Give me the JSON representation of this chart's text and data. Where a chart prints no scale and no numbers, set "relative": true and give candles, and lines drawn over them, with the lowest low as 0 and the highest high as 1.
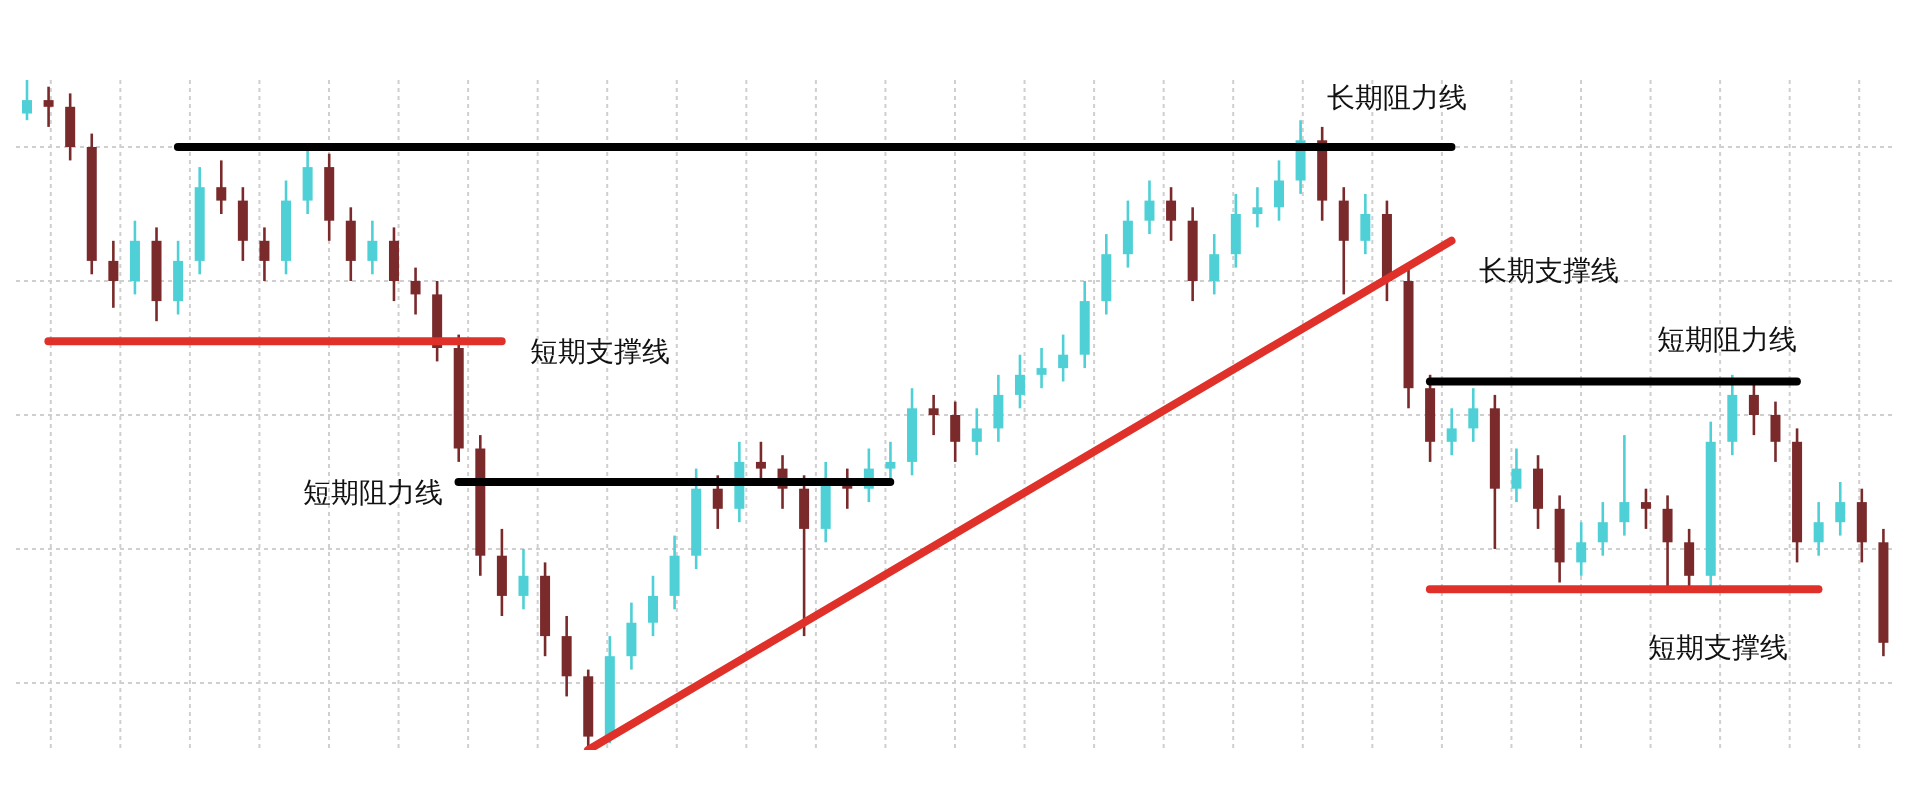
{
  "chart_data": {
    "type": "candlestick",
    "relative": true,
    "grid": true,
    "categories": [
      null,
      null,
      null,
      null,
      null,
      null,
      null,
      null,
      null,
      null,
      null,
      null,
      null,
      null,
      null,
      null,
      null,
      null,
      null,
      null,
      null,
      null,
      null,
      null,
      null,
      null,
      null,
      null,
      null,
      null,
      null,
      null,
      null,
      null,
      null,
      null,
      null,
      null,
      null,
      null,
      null,
      null,
      null,
      null,
      null,
      null,
      null,
      null,
      null,
      null,
      null,
      null,
      null,
      null,
      null,
      null,
      null,
      null,
      null,
      null,
      null,
      null,
      null,
      null,
      null,
      null,
      null,
      null,
      null,
      null,
      null,
      null,
      null,
      null,
      null,
      null,
      null,
      null,
      null,
      null,
      null,
      null,
      null,
      null,
      null,
      null,
      null
    ],
    "ohlc": [
      [
        0.95,
        1.0,
        0.94,
        0.97
      ],
      [
        0.97,
        0.99,
        0.93,
        0.96
      ],
      [
        0.96,
        0.98,
        0.88,
        0.9
      ],
      [
        0.9,
        0.92,
        0.71,
        0.73
      ],
      [
        0.73,
        0.76,
        0.66,
        0.7
      ],
      [
        0.7,
        0.79,
        0.68,
        0.76
      ],
      [
        0.76,
        0.78,
        0.64,
        0.67
      ],
      [
        0.67,
        0.76,
        0.65,
        0.73
      ],
      [
        0.73,
        0.87,
        0.71,
        0.84
      ],
      [
        0.84,
        0.88,
        0.8,
        0.82
      ],
      [
        0.82,
        0.84,
        0.73,
        0.76
      ],
      [
        0.76,
        0.78,
        0.7,
        0.73
      ],
      [
        0.73,
        0.85,
        0.71,
        0.82
      ],
      [
        0.82,
        0.9,
        0.8,
        0.87
      ],
      [
        0.87,
        0.89,
        0.76,
        0.79
      ],
      [
        0.79,
        0.81,
        0.7,
        0.73
      ],
      [
        0.73,
        0.79,
        0.71,
        0.76
      ],
      [
        0.76,
        0.78,
        0.67,
        0.7
      ],
      [
        0.7,
        0.72,
        0.65,
        0.68
      ],
      [
        0.68,
        0.7,
        0.58,
        0.6
      ],
      [
        0.6,
        0.62,
        0.43,
        0.45
      ],
      [
        0.45,
        0.47,
        0.26,
        0.29
      ],
      [
        0.29,
        0.33,
        0.2,
        0.23
      ],
      [
        0.23,
        0.3,
        0.21,
        0.26
      ],
      [
        0.26,
        0.28,
        0.14,
        0.17
      ],
      [
        0.17,
        0.2,
        0.08,
        0.11
      ],
      [
        0.11,
        0.12,
        0.0,
        0.02
      ],
      [
        0.02,
        0.17,
        0.01,
        0.14
      ],
      [
        0.14,
        0.22,
        0.12,
        0.19
      ],
      [
        0.19,
        0.26,
        0.17,
        0.23
      ],
      [
        0.23,
        0.32,
        0.21,
        0.29
      ],
      [
        0.29,
        0.42,
        0.27,
        0.39
      ],
      [
        0.39,
        0.41,
        0.33,
        0.36
      ],
      [
        0.36,
        0.46,
        0.34,
        0.43
      ],
      [
        0.43,
        0.46,
        0.4,
        0.42
      ],
      [
        0.42,
        0.44,
        0.36,
        0.39
      ],
      [
        0.39,
        0.41,
        0.17,
        0.33
      ],
      [
        0.33,
        0.43,
        0.31,
        0.4
      ],
      [
        0.4,
        0.42,
        0.36,
        0.39
      ],
      [
        0.39,
        0.45,
        0.37,
        0.42
      ],
      [
        0.42,
        0.46,
        0.4,
        0.43
      ],
      [
        0.43,
        0.54,
        0.41,
        0.51
      ],
      [
        0.51,
        0.53,
        0.47,
        0.5
      ],
      [
        0.5,
        0.52,
        0.43,
        0.46
      ],
      [
        0.46,
        0.51,
        0.44,
        0.48
      ],
      [
        0.48,
        0.56,
        0.46,
        0.53
      ],
      [
        0.53,
        0.59,
        0.51,
        0.56
      ],
      [
        0.56,
        0.6,
        0.54,
        0.57
      ],
      [
        0.57,
        0.62,
        0.55,
        0.59
      ],
      [
        0.59,
        0.7,
        0.57,
        0.67
      ],
      [
        0.67,
        0.77,
        0.65,
        0.74
      ],
      [
        0.74,
        0.82,
        0.72,
        0.79
      ],
      [
        0.79,
        0.85,
        0.77,
        0.82
      ],
      [
        0.82,
        0.84,
        0.76,
        0.79
      ],
      [
        0.79,
        0.81,
        0.67,
        0.7
      ],
      [
        0.7,
        0.77,
        0.68,
        0.74
      ],
      [
        0.74,
        0.83,
        0.72,
        0.8
      ],
      [
        0.8,
        0.84,
        0.78,
        0.81
      ],
      [
        0.81,
        0.88,
        0.79,
        0.85
      ],
      [
        0.85,
        0.94,
        0.83,
        0.91
      ],
      [
        0.91,
        0.93,
        0.79,
        0.82
      ],
      [
        0.82,
        0.84,
        0.68,
        0.76
      ],
      [
        0.76,
        0.83,
        0.74,
        0.8
      ],
      [
        0.8,
        0.82,
        0.67,
        0.7
      ],
      [
        0.7,
        0.72,
        0.51,
        0.54
      ],
      [
        0.54,
        0.56,
        0.43,
        0.46
      ],
      [
        0.46,
        0.51,
        0.44,
        0.48
      ],
      [
        0.48,
        0.54,
        0.46,
        0.51
      ],
      [
        0.51,
        0.53,
        0.3,
        0.39
      ],
      [
        0.39,
        0.45,
        0.37,
        0.42
      ],
      [
        0.42,
        0.44,
        0.33,
        0.36
      ],
      [
        0.36,
        0.38,
        0.25,
        0.28
      ],
      [
        0.28,
        0.34,
        0.26,
        0.31
      ],
      [
        0.31,
        0.37,
        0.29,
        0.34
      ],
      [
        0.34,
        0.47,
        0.32,
        0.37
      ],
      [
        0.37,
        0.39,
        0.33,
        0.36
      ],
      [
        0.36,
        0.38,
        0.24,
        0.31
      ],
      [
        0.31,
        0.33,
        0.24,
        0.26
      ],
      [
        0.26,
        0.49,
        0.24,
        0.46
      ],
      [
        0.46,
        0.56,
        0.44,
        0.53
      ],
      [
        0.53,
        0.55,
        0.47,
        0.5
      ],
      [
        0.5,
        0.52,
        0.43,
        0.46
      ],
      [
        0.46,
        0.48,
        0.28,
        0.31
      ],
      [
        0.31,
        0.37,
        0.29,
        0.34
      ],
      [
        0.34,
        0.4,
        0.32,
        0.37
      ],
      [
        0.37,
        0.39,
        0.28,
        0.31
      ],
      [
        0.31,
        0.33,
        0.14,
        0.16
      ]
    ],
    "series": [
      {
        "type": "line",
        "name": "长期阻力线",
        "color": "#000000",
        "values": [
          null,
          null,
          null,
          null,
          null,
          null,
          null,
          0.9,
          null,
          null,
          null,
          null,
          null,
          null,
          null,
          null,
          null,
          null,
          null,
          null,
          null,
          null,
          null,
          null,
          null,
          null,
          null,
          null,
          null,
          null,
          null,
          null,
          null,
          null,
          null,
          null,
          null,
          null,
          null,
          null,
          null,
          null,
          null,
          null,
          null,
          null,
          null,
          null,
          null,
          null,
          null,
          null,
          null,
          null,
          null,
          null,
          null,
          null,
          null,
          null,
          null,
          null,
          null,
          null,
          null,
          null,
          0.9,
          null,
          null,
          null,
          null,
          null,
          null,
          null,
          null,
          null,
          null,
          null,
          null,
          null,
          null,
          null,
          null,
          null,
          null,
          null,
          null
        ]
      },
      {
        "type": "line",
        "name": "短期支撑线",
        "color": "#e0302a",
        "values": [
          null,
          0.61,
          null,
          null,
          null,
          null,
          null,
          null,
          null,
          null,
          null,
          null,
          null,
          null,
          null,
          null,
          null,
          null,
          null,
          null,
          null,
          null,
          0.61,
          null,
          null,
          null,
          null,
          null,
          null,
          null,
          null,
          null,
          null,
          null,
          null,
          null,
          null,
          null,
          null,
          null,
          null,
          null,
          null,
          null,
          null,
          null,
          null,
          null,
          null,
          null,
          null,
          null,
          null,
          null,
          null,
          null,
          null,
          null,
          null,
          null,
          null,
          null,
          null,
          null,
          null,
          null,
          null,
          null,
          null,
          null,
          null,
          null,
          null,
          null,
          null,
          null,
          null,
          null,
          null,
          null,
          null,
          null,
          null,
          null,
          null,
          null,
          null
        ]
      },
      {
        "type": "line",
        "name": "短期阻力线",
        "color": "#000000",
        "values": [
          null,
          null,
          null,
          null,
          null,
          null,
          null,
          null,
          null,
          null,
          null,
          null,
          null,
          null,
          null,
          null,
          null,
          null,
          null,
          null,
          0.4,
          null,
          null,
          null,
          null,
          null,
          null,
          null,
          null,
          null,
          null,
          null,
          null,
          null,
          null,
          null,
          null,
          null,
          null,
          null,
          0.4,
          null,
          null,
          null,
          null,
          null,
          null,
          null,
          null,
          null,
          null,
          null,
          null,
          null,
          null,
          null,
          null,
          null,
          null,
          null,
          null,
          null,
          null,
          null,
          null,
          null,
          null,
          null,
          null,
          null,
          null,
          null,
          null,
          null,
          null,
          null,
          null,
          null,
          null,
          null,
          null,
          null,
          null,
          null,
          null,
          null,
          null
        ]
      },
      {
        "type": "line",
        "name": "长期支撑线",
        "color": "#e0302a",
        "values": [
          null,
          null,
          null,
          null,
          null,
          null,
          null,
          null,
          null,
          null,
          null,
          null,
          null,
          null,
          null,
          null,
          null,
          null,
          null,
          null,
          null,
          null,
          null,
          null,
          null,
          null,
          0.0,
          null,
          null,
          null,
          null,
          null,
          null,
          null,
          null,
          null,
          null,
          null,
          null,
          null,
          null,
          null,
          null,
          null,
          null,
          null,
          null,
          null,
          null,
          null,
          null,
          null,
          null,
          null,
          null,
          null,
          null,
          null,
          null,
          null,
          null,
          null,
          null,
          null,
          null,
          null,
          0.76,
          null,
          null,
          null,
          null,
          null,
          null,
          null,
          null,
          null,
          null,
          null,
          null,
          null,
          null,
          null,
          null,
          null,
          null,
          null,
          null
        ]
      },
      {
        "type": "line",
        "name": "短期阻力线",
        "color": "#000000",
        "values": [
          null,
          null,
          null,
          null,
          null,
          null,
          null,
          null,
          null,
          null,
          null,
          null,
          null,
          null,
          null,
          null,
          null,
          null,
          null,
          null,
          null,
          null,
          null,
          null,
          null,
          null,
          null,
          null,
          null,
          null,
          null,
          null,
          null,
          null,
          null,
          null,
          null,
          null,
          null,
          null,
          null,
          null,
          null,
          null,
          null,
          null,
          null,
          null,
          null,
          null,
          null,
          null,
          null,
          null,
          null,
          null,
          null,
          null,
          null,
          null,
          null,
          null,
          null,
          null,
          null,
          0.55,
          null,
          null,
          null,
          null,
          null,
          null,
          null,
          null,
          null,
          null,
          null,
          null,
          null,
          null,
          null,
          null,
          0.55,
          null,
          null,
          null,
          null
        ]
      },
      {
        "type": "line",
        "name": "短期支撑线",
        "color": "#e0302a",
        "values": [
          null,
          null,
          null,
          null,
          null,
          null,
          null,
          null,
          null,
          null,
          null,
          null,
          null,
          null,
          null,
          null,
          null,
          null,
          null,
          null,
          null,
          null,
          null,
          null,
          null,
          null,
          null,
          null,
          null,
          null,
          null,
          null,
          null,
          null,
          null,
          null,
          null,
          null,
          null,
          null,
          null,
          null,
          null,
          null,
          null,
          null,
          null,
          null,
          null,
          null,
          null,
          null,
          null,
          null,
          null,
          null,
          null,
          null,
          null,
          null,
          null,
          null,
          null,
          null,
          null,
          0.24,
          null,
          null,
          null,
          null,
          null,
          null,
          null,
          null,
          null,
          null,
          null,
          null,
          null,
          null,
          null,
          null,
          null,
          0.24,
          null,
          null,
          null
        ]
      }
    ]
  }
}
